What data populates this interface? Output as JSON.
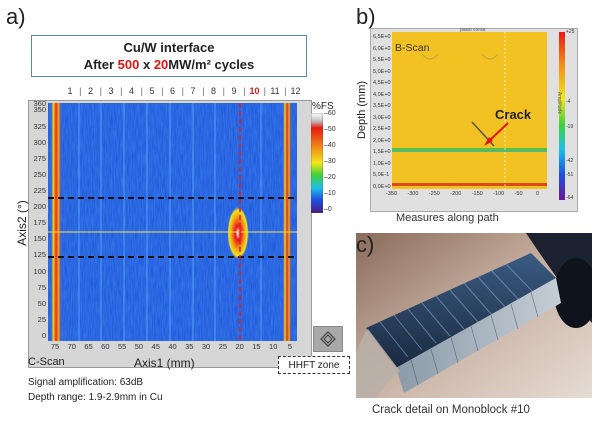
{
  "panels": {
    "a": "a)",
    "b": "b)",
    "c": "c)"
  },
  "title_box": {
    "line1": "Cu/W interface",
    "line2_pre": "After ",
    "line2_cycles": "500",
    "line2_mid": " x ",
    "line2_flux": "20",
    "line2_post": "MW/m² cycles"
  },
  "cscan": {
    "column_labels": [
      "1",
      "2",
      "3",
      "4",
      "5",
      "6",
      "7",
      "8",
      "9",
      "10",
      "11",
      "12"
    ],
    "highlight_column": "10",
    "y_ticks": [
      "360",
      "350",
      "325",
      "300",
      "275",
      "250",
      "225",
      "200",
      "175",
      "150",
      "125",
      "100",
      "75",
      "50",
      "25",
      "0"
    ],
    "x_ticks": [
      "75",
      "70",
      "65",
      "60",
      "55",
      "50",
      "45",
      "40",
      "35",
      "30",
      "25",
      "20",
      "15",
      "10",
      "5"
    ],
    "y_label": "Axis2 (°)",
    "x_label": "Axis1 (mm)",
    "scan_label": "C-Scan",
    "colorbar_title": "%FS",
    "colorbar_ticks": [
      "60",
      "50",
      "40",
      "30",
      "20",
      "10",
      "0"
    ],
    "zone_label": "HHFT zone",
    "info_line1": "Signal amplification: 63dB",
    "info_line2": "Depth range: 1.9-2.9mm in Cu"
  },
  "bscan": {
    "scan_label": "B-Scan",
    "y_label": "Depth (mm)",
    "crack_label": "Crack",
    "x_small_label": "passi corsa",
    "y_ticks": [
      "6,5E+0",
      "6,0E+0",
      "5,5E+0",
      "5,0E+0",
      "4,5E+0",
      "4,0E+0",
      "3,5E+0",
      "3,0E+0",
      "2,5E+0",
      "2,0E+0",
      "1,5E+0",
      "1,0E+0",
      "5,0E-1",
      "0,0E+0"
    ],
    "x_ticks": [
      "-350",
      "-300",
      "-250",
      "-200",
      "-150",
      "-100",
      "-50",
      "0"
    ],
    "colorbar_ticks": [
      "+25",
      "-4",
      "-19",
      "-42",
      "-51",
      "-64"
    ],
    "colorbar_title": "Amplitude",
    "caption": "Measures along path"
  },
  "photo": {
    "caption": "Crack detail on Monoblock #10"
  },
  "colors": {
    "accent_red": "#e01414",
    "title_border": "#5a86b8"
  }
}
